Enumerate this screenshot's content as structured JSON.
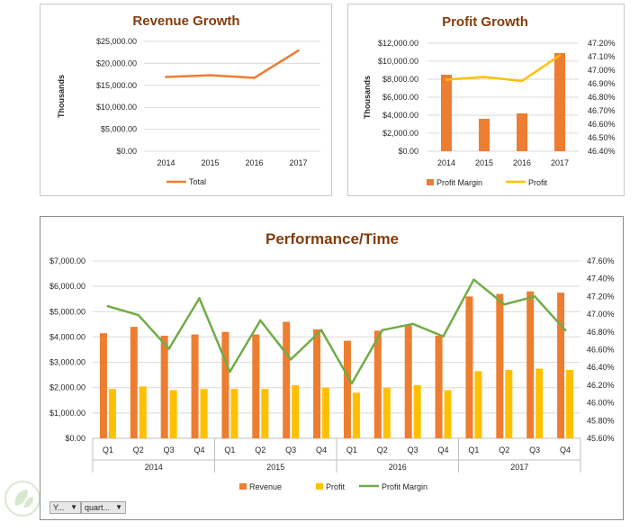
{
  "charts": {
    "revenue": {
      "title": "Revenue Growth",
      "ylabel": "Thousands",
      "legend": [
        "Total"
      ]
    },
    "profit": {
      "title": "Profit Growth",
      "ylabel": "Thousands",
      "legend": [
        "Profit Margin",
        "Profit"
      ]
    },
    "performance": {
      "title": "Performance/Time",
      "legend": [
        "Revenue",
        "Profit",
        "Profit Margin"
      ]
    }
  },
  "colors": {
    "revenue": "#ed7d31",
    "profit": "#ffc000",
    "margin": "#70ad47",
    "title": "#843c0c",
    "gold_line": "#ffc000"
  },
  "slicers": [
    {
      "label": "Y...",
      "icon": "dropdown-arrow-icon"
    },
    {
      "label": "quart...",
      "icon": "dropdown-arrow-icon"
    }
  ],
  "chart_data": [
    {
      "type": "line",
      "title": "Revenue Growth",
      "ylabel": "Thousands",
      "categories": [
        "2014",
        "2015",
        "2016",
        "2017"
      ],
      "y_ticks": [
        "$0.00",
        "$5,000.00",
        "$10,000.00",
        "$15,000.00",
        "$20,000.00",
        "$25,000.00"
      ],
      "ylim": [
        0,
        25000
      ],
      "series": [
        {
          "name": "Total",
          "values": [
            16900,
            17300,
            16700,
            22900
          ]
        }
      ],
      "legend": "bottom"
    },
    {
      "type": "bar",
      "title": "Profit Growth",
      "ylabel": "Thousands",
      "categories": [
        "2014",
        "2015",
        "2016",
        "2017"
      ],
      "y_ticks": [
        "$0.00",
        "$2,000.00",
        "$4,000.00",
        "$6,000.00",
        "$8,000.00",
        "$10,000.00",
        "$12,000.00"
      ],
      "ylim": [
        0,
        12000
      ],
      "y2_ticks": [
        "46.40%",
        "46.50%",
        "46.60%",
        "46.70%",
        "46.80%",
        "46.90%",
        "47.00%",
        "47.10%",
        "47.20%"
      ],
      "y2lim": [
        46.4,
        47.2
      ],
      "series": [
        {
          "name": "Profit Margin",
          "type": "bar",
          "values": [
            8500,
            3600,
            4200,
            10900
          ]
        },
        {
          "name": "Profit",
          "type": "line",
          "axis": "secondary",
          "values": [
            46.93,
            46.95,
            46.92,
            47.11
          ]
        }
      ],
      "legend": "bottom"
    },
    {
      "type": "bar",
      "title": "Performance/Time",
      "categories": [
        "Q1",
        "Q2",
        "Q3",
        "Q4",
        "Q1",
        "Q2",
        "Q3",
        "Q4",
        "Q1",
        "Q2",
        "Q3",
        "Q4",
        "Q1",
        "Q2",
        "Q3",
        "Q4"
      ],
      "groups": [
        "2014",
        "2015",
        "2016",
        "2017"
      ],
      "y_ticks": [
        "$0.00",
        "$1,000.00",
        "$2,000.00",
        "$3,000.00",
        "$4,000.00",
        "$5,000.00",
        "$6,000.00",
        "$7,000.00"
      ],
      "ylim": [
        0,
        7000
      ],
      "y2_ticks": [
        "45.60%",
        "45.80%",
        "46.00%",
        "46.20%",
        "46.40%",
        "46.60%",
        "46.80%",
        "47.00%",
        "47.20%",
        "47.40%",
        "47.60%"
      ],
      "y2lim": [
        45.6,
        47.6
      ],
      "series": [
        {
          "name": "Revenue",
          "type": "bar",
          "values": [
            4150,
            4400,
            4050,
            4100,
            4200,
            4100,
            4600,
            4300,
            3850,
            4250,
            4450,
            4050,
            5600,
            5700,
            5800,
            5750
          ]
        },
        {
          "name": "Profit",
          "type": "bar",
          "values": [
            1950,
            2050,
            1900,
            1950,
            1950,
            1950,
            2100,
            2000,
            1800,
            2000,
            2100,
            1900,
            2650,
            2700,
            2750,
            2700
          ]
        },
        {
          "name": "Profit Margin",
          "type": "line",
          "axis": "secondary",
          "values": [
            47.09,
            46.99,
            46.61,
            47.18,
            46.35,
            46.93,
            46.49,
            46.82,
            46.22,
            46.82,
            46.89,
            46.75,
            47.39,
            47.11,
            47.2,
            46.82
          ]
        }
      ],
      "legend": "bottom"
    }
  ]
}
